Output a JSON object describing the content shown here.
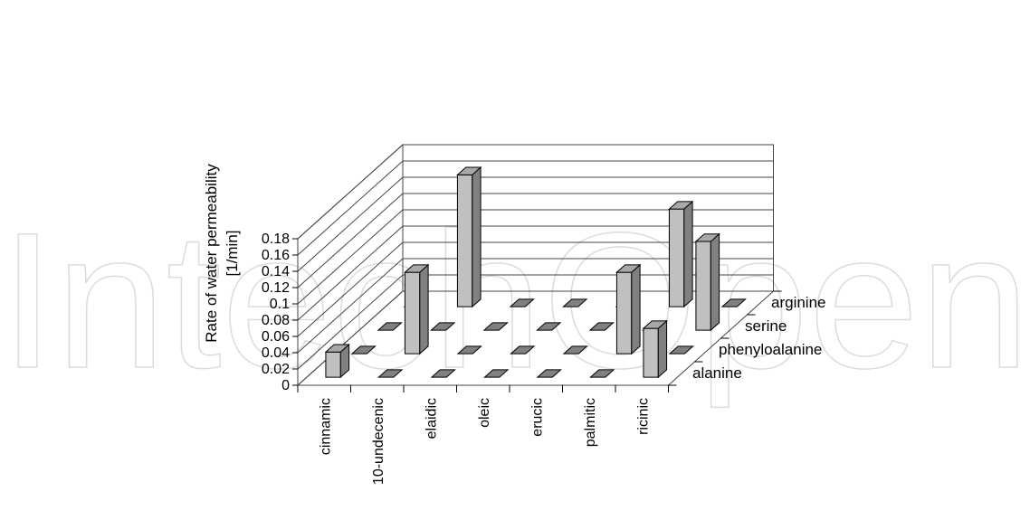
{
  "chart_data": {
    "type": "bar",
    "subtype": "3d-column",
    "ylabel_lines": [
      "Rate of water permeability",
      "[1/min]"
    ],
    "ylim": [
      0,
      0.18
    ],
    "yticks": [
      "0",
      "0.02",
      "0.04",
      "0.06",
      "0.08",
      "0.1",
      "0.12",
      "0.14",
      "0.16",
      "0.18"
    ],
    "grid": true,
    "categories": [
      "cinnamic",
      "10-undecenic",
      "elaidic",
      "oleic",
      "erucic",
      "palmitic",
      "ricinic"
    ],
    "series": [
      {
        "name": "alanine",
        "values": [
          0.031,
          0,
          0,
          0,
          0,
          0,
          0.06
        ]
      },
      {
        "name": "phenyloalanine",
        "values": [
          0,
          0.1,
          0,
          0,
          0,
          0.1,
          0
        ]
      },
      {
        "name": "serine",
        "values": [
          0,
          0,
          0,
          0,
          0,
          0,
          0.109
        ]
      },
      {
        "name": "arginine",
        "values": [
          0,
          0.162,
          0,
          0,
          0,
          0.12,
          0
        ]
      }
    ],
    "colors": {
      "bar_front": "#c0c0c0",
      "bar_side": "#808080",
      "bar_top": "#a8a8a8"
    }
  },
  "watermark": {
    "text": "IntechOpen"
  }
}
